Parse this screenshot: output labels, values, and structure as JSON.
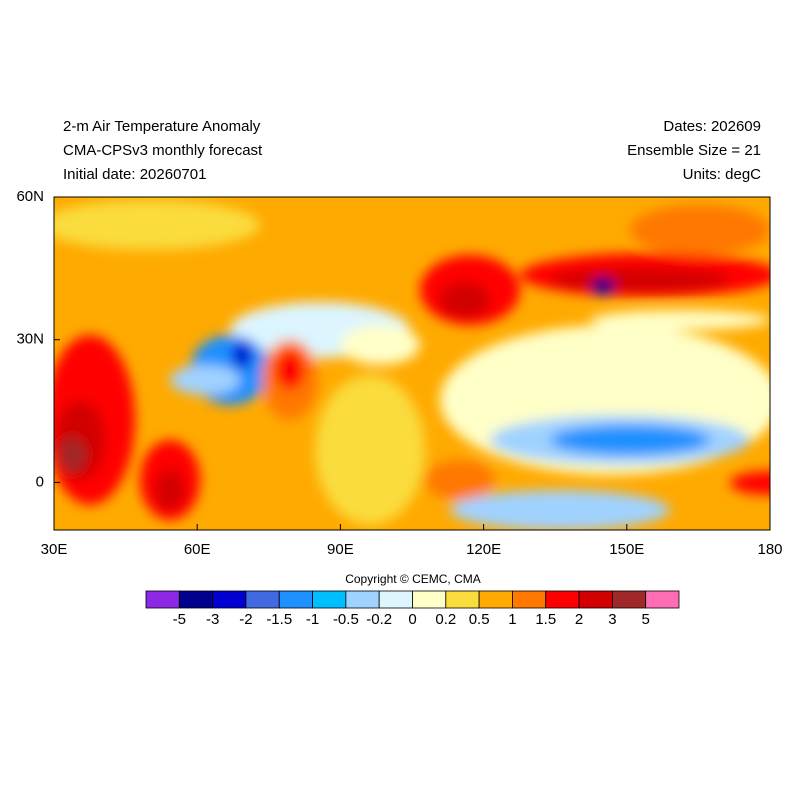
{
  "header": {
    "left": [
      "2-m Air Temperature Anomaly",
      "CMA-CPSv3 monthly forecast",
      "Initial date: 20260701"
    ],
    "right": [
      "Dates: 202609",
      "Ensemble Size = 21",
      "Units: degC"
    ]
  },
  "map": {
    "xlim": [
      30,
      180
    ],
    "ylim": [
      -10,
      60
    ],
    "xticks": [
      {
        "value": 30,
        "label": "30E"
      },
      {
        "value": 60,
        "label": "60E"
      },
      {
        "value": 90,
        "label": "90E"
      },
      {
        "value": 120,
        "label": "120E"
      },
      {
        "value": 150,
        "label": "150E"
      },
      {
        "value": 180,
        "label": "180"
      }
    ],
    "yticks": [
      {
        "value": 60,
        "label": "60N"
      },
      {
        "value": 30,
        "label": "30N"
      },
      0
    ]
  },
  "copyright": "Copyright © CEMC, CMA",
  "colorbar": {
    "colors": [
      "#8c28e6",
      "#00008c",
      "#0000d2",
      "#4169e1",
      "#1e90ff",
      "#00bfff",
      "#a0d2ff",
      "#dcf5ff",
      "#ffffc8",
      "#fadc3c",
      "#ffaa00",
      "#ff7800",
      "#ff0000",
      "#d20000",
      "#a02828",
      "#ff6eb4"
    ],
    "levels": [
      -5,
      -3,
      -2,
      -1.5,
      -1,
      -0.5,
      -0.2,
      0,
      0.2,
      0.5,
      1,
      1.5,
      2,
      3,
      5
    ]
  }
}
